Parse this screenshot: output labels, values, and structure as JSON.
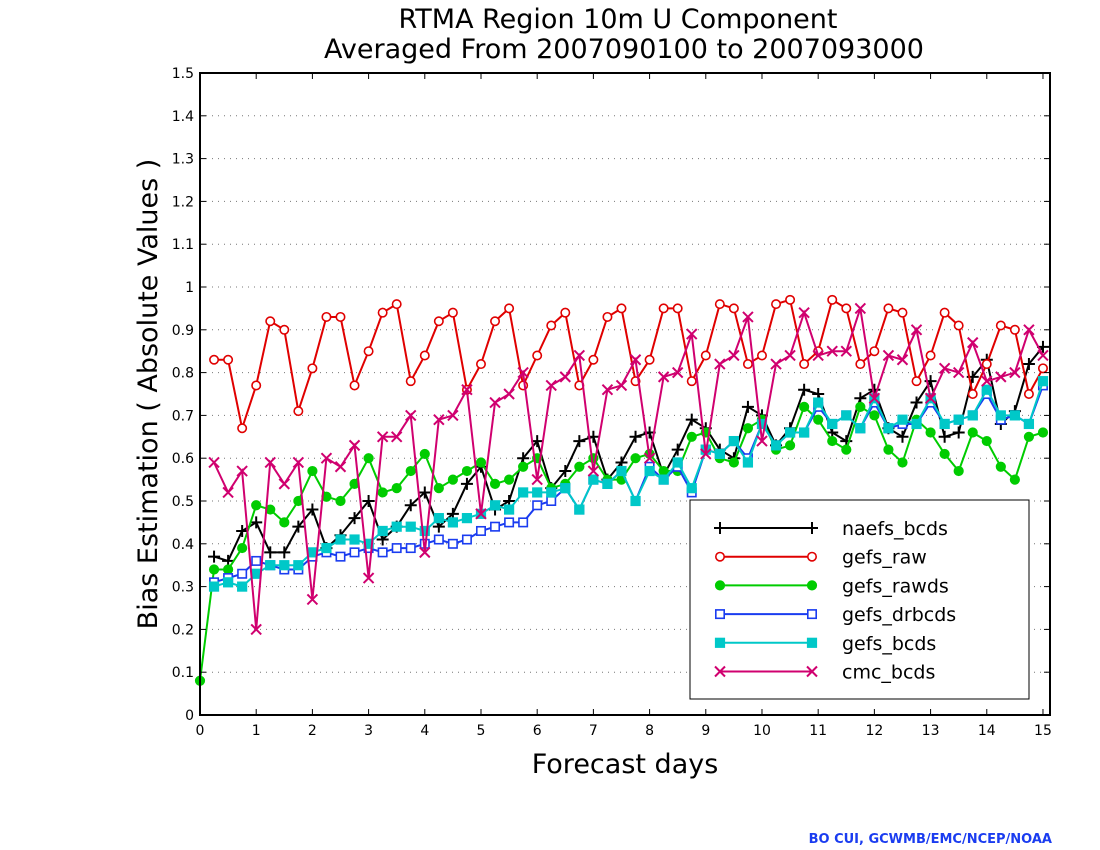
{
  "chart_data": {
    "type": "line",
    "title": "RTMA Region 10m U Component",
    "subtitle": "Averaged From 2007090100 to 2007093000",
    "xlabel": "Forecast days",
    "ylabel": "Bias Estimation ( Absolute Values )",
    "xlim": [
      0,
      15.125
    ],
    "ylim": [
      0,
      1.5
    ],
    "xticks": [
      "0",
      "1",
      "2",
      "3",
      "4",
      "5",
      "6",
      "7",
      "8",
      "9",
      "10",
      "11",
      "12",
      "13",
      "14",
      "15"
    ],
    "yticks": [
      "0",
      "0.1",
      "0.2",
      "0.3",
      "0.4",
      "0.5",
      "0.6",
      "0.7",
      "0.8",
      "0.9",
      "1",
      "1.1",
      "1.2",
      "1.3",
      "1.4",
      "1.5"
    ],
    "grid": "horizontal dotted",
    "legend_position": "lower-right",
    "x": [
      0.25,
      0.5,
      0.75,
      1,
      1.25,
      1.5,
      1.75,
      2,
      2.25,
      2.5,
      2.75,
      3,
      3.25,
      3.5,
      3.75,
      4,
      4.25,
      4.5,
      4.75,
      5,
      5.25,
      5.5,
      5.75,
      6,
      6.25,
      6.5,
      6.75,
      7,
      7.25,
      7.5,
      7.75,
      8,
      8.25,
      8.5,
      8.75,
      9,
      9.25,
      9.5,
      9.75,
      10,
      10.25,
      10.5,
      10.75,
      11,
      11.25,
      11.5,
      11.75,
      12,
      12.25,
      12.5,
      12.75,
      13,
      13.25,
      13.5,
      13.75,
      14,
      14.25,
      14.5,
      14.75,
      15
    ],
    "series": [
      {
        "name": "naefs_bcds",
        "color": "#000000",
        "marker": "plus",
        "values": [
          0.37,
          0.36,
          0.43,
          0.45,
          0.38,
          0.38,
          0.44,
          0.48,
          0.39,
          0.42,
          0.46,
          0.5,
          0.41,
          0.44,
          0.49,
          0.52,
          0.44,
          0.47,
          0.54,
          0.58,
          0.48,
          0.5,
          0.6,
          0.64,
          0.53,
          0.57,
          0.64,
          0.65,
          0.55,
          0.59,
          0.65,
          0.66,
          0.56,
          0.62,
          0.69,
          0.67,
          0.62,
          0.6,
          0.72,
          0.7,
          0.63,
          0.67,
          0.76,
          0.75,
          0.66,
          0.64,
          0.74,
          0.76,
          0.67,
          0.65,
          0.73,
          0.78,
          0.65,
          0.66,
          0.79,
          0.83,
          0.68,
          0.71,
          0.82,
          0.86
        ]
      },
      {
        "name": "gefs_raw",
        "color": "#e00000",
        "marker": "circle-open",
        "values": [
          0.83,
          0.83,
          0.67,
          0.77,
          0.92,
          0.9,
          0.71,
          0.81,
          0.93,
          0.93,
          0.77,
          0.85,
          0.94,
          0.96,
          0.78,
          0.84,
          0.92,
          0.94,
          0.76,
          0.82,
          0.92,
          0.95,
          0.77,
          0.84,
          0.91,
          0.94,
          0.77,
          0.83,
          0.93,
          0.95,
          0.78,
          0.83,
          0.95,
          0.95,
          0.78,
          0.84,
          0.96,
          0.95,
          0.82,
          0.84,
          0.96,
          0.97,
          0.82,
          0.85,
          0.97,
          0.95,
          0.82,
          0.85,
          0.95,
          0.94,
          0.78,
          0.84,
          0.94,
          0.91,
          0.75,
          0.82,
          0.91,
          0.9,
          0.75,
          0.81
        ]
      },
      {
        "name": "gefs_rawds",
        "color": "#00cc00",
        "marker": "circle-filled",
        "values": [
          0.34,
          0.34,
          0.39,
          0.49,
          0.48,
          0.45,
          0.5,
          0.57,
          0.51,
          0.5,
          0.54,
          0.6,
          0.52,
          0.53,
          0.57,
          0.61,
          0.53,
          0.55,
          0.57,
          0.59,
          0.54,
          0.55,
          0.58,
          0.6,
          0.53,
          0.54,
          0.58,
          0.6,
          0.55,
          0.55,
          0.6,
          0.61,
          0.57,
          0.57,
          0.65,
          0.66,
          0.6,
          0.59,
          0.67,
          0.69,
          0.62,
          0.63,
          0.72,
          0.69,
          0.64,
          0.62,
          0.72,
          0.7,
          0.62,
          0.59,
          0.69,
          0.66,
          0.61,
          0.57,
          0.66,
          0.64,
          0.58,
          0.55,
          0.65,
          0.66
        ]
      },
      {
        "name": "gefs_drbcds",
        "color": "#1a3cf0",
        "marker": "square-open",
        "values": [
          0.31,
          0.32,
          0.33,
          0.36,
          0.35,
          0.34,
          0.34,
          0.37,
          0.38,
          0.37,
          0.38,
          0.39,
          0.38,
          0.39,
          0.39,
          0.4,
          0.41,
          0.4,
          0.41,
          0.43,
          0.44,
          0.45,
          0.45,
          0.49,
          0.5,
          0.53,
          0.48,
          0.55,
          0.54,
          0.57,
          0.5,
          0.58,
          0.55,
          0.58,
          0.52,
          0.62,
          0.61,
          0.64,
          0.6,
          0.68,
          0.63,
          0.66,
          0.66,
          0.72,
          0.68,
          0.7,
          0.67,
          0.73,
          0.67,
          0.68,
          0.68,
          0.73,
          0.68,
          0.69,
          0.7,
          0.75,
          0.69,
          0.7,
          0.68,
          0.77
        ]
      },
      {
        "name": "gefs_bcds",
        "color": "#00c8c8",
        "marker": "square-filled",
        "values": [
          0.3,
          0.31,
          0.3,
          0.33,
          0.35,
          0.35,
          0.35,
          0.38,
          0.39,
          0.41,
          0.41,
          0.4,
          0.43,
          0.44,
          0.44,
          0.43,
          0.46,
          0.45,
          0.46,
          0.47,
          0.49,
          0.48,
          0.52,
          0.52,
          0.52,
          0.53,
          0.48,
          0.55,
          0.54,
          0.57,
          0.5,
          0.57,
          0.55,
          0.59,
          0.53,
          0.62,
          0.61,
          0.64,
          0.59,
          0.68,
          0.63,
          0.66,
          0.66,
          0.73,
          0.68,
          0.7,
          0.67,
          0.74,
          0.67,
          0.69,
          0.68,
          0.74,
          0.68,
          0.69,
          0.7,
          0.76,
          0.7,
          0.7,
          0.68,
          0.78
        ]
      },
      {
        "name": "cmc_bcds",
        "color": "#d0006f",
        "marker": "cross",
        "values": [
          0.59,
          0.52,
          0.57,
          0.2,
          0.59,
          0.54,
          0.59,
          0.27,
          0.6,
          0.58,
          0.63,
          0.32,
          0.65,
          0.65,
          0.7,
          0.38,
          0.69,
          0.7,
          0.76,
          0.47,
          0.73,
          0.75,
          0.8,
          0.55,
          0.77,
          0.79,
          0.84,
          0.57,
          0.76,
          0.77,
          0.83,
          0.6,
          0.79,
          0.8,
          0.89,
          0.61,
          0.82,
          0.84,
          0.93,
          0.64,
          0.82,
          0.84,
          0.94,
          0.84,
          0.85,
          0.85,
          0.95,
          0.74,
          0.84,
          0.83,
          0.9,
          0.74,
          0.81,
          0.8,
          0.87,
          0.78,
          0.79,
          0.8,
          0.9,
          0.84
        ]
      }
    ],
    "extra_start_point": {
      "series": "gefs_rawds",
      "x": 0,
      "y": 0.08
    }
  },
  "credit": "BO CUI, GCWMB/EMC/NCEP/NOAA"
}
